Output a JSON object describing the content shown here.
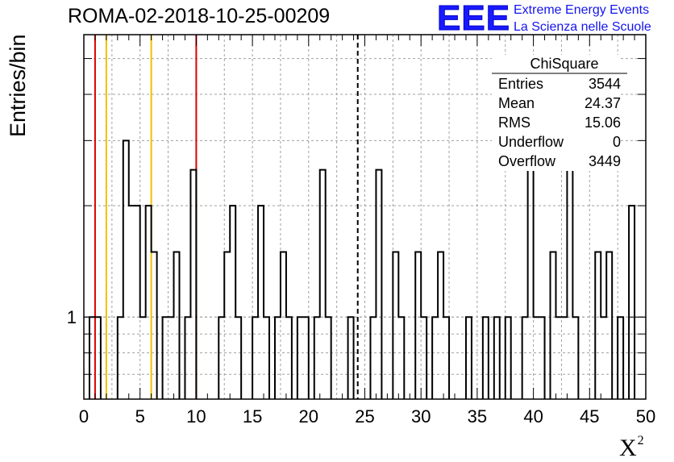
{
  "page_title": "ROMA-02-2018-10-25-00209",
  "logo": {
    "mark": "EEE",
    "line1": "Extreme Energy Events",
    "line2": "La Scienza nelle Scuole",
    "color": "#1a1aff"
  },
  "chart_data": {
    "type": "histogram",
    "title": "ROMA-02-2018-10-25-00209",
    "xlabel": "X",
    "xlabel_superscript": "2",
    "ylabel": "Entries/bin",
    "xlim": [
      0,
      50
    ],
    "ylim": [
      0.6,
      5.8
    ],
    "yscale": "log",
    "grid": true,
    "bin_width": 0.5,
    "x_ticks": [
      0,
      5,
      10,
      15,
      20,
      25,
      30,
      35,
      40,
      45,
      50
    ],
    "y_tick_labels": [
      {
        "value": 1,
        "label": "1"
      }
    ],
    "bins": [
      {
        "x": 0.5,
        "y": 1
      },
      {
        "x": 1.0,
        "y": 1
      },
      {
        "x": 3.0,
        "y": 1
      },
      {
        "x": 3.5,
        "y": 3
      },
      {
        "x": 4.0,
        "y": 2
      },
      {
        "x": 4.5,
        "y": 2
      },
      {
        "x": 5.0,
        "y": 1
      },
      {
        "x": 5.5,
        "y": 2
      },
      {
        "x": 6.0,
        "y": 1.5
      },
      {
        "x": 7.0,
        "y": 1
      },
      {
        "x": 7.5,
        "y": 1
      },
      {
        "x": 8.0,
        "y": 1.5
      },
      {
        "x": 9.0,
        "y": 1
      },
      {
        "x": 9.5,
        "y": 2.5
      },
      {
        "x": 12.0,
        "y": 1
      },
      {
        "x": 12.5,
        "y": 1.5
      },
      {
        "x": 13.0,
        "y": 2
      },
      {
        "x": 13.5,
        "y": 1
      },
      {
        "x": 15.0,
        "y": 1
      },
      {
        "x": 15.5,
        "y": 2
      },
      {
        "x": 16.0,
        "y": 1
      },
      {
        "x": 17.0,
        "y": 1
      },
      {
        "x": 17.5,
        "y": 1.5
      },
      {
        "x": 18.0,
        "y": 1
      },
      {
        "x": 19.0,
        "y": 1
      },
      {
        "x": 19.5,
        "y": 1
      },
      {
        "x": 20.5,
        "y": 1
      },
      {
        "x": 21.0,
        "y": 2.5
      },
      {
        "x": 21.5,
        "y": 1
      },
      {
        "x": 23.5,
        "y": 1
      },
      {
        "x": 25.5,
        "y": 1
      },
      {
        "x": 26.0,
        "y": 2.5
      },
      {
        "x": 27.5,
        "y": 1.5
      },
      {
        "x": 28.0,
        "y": 1
      },
      {
        "x": 29.5,
        "y": 1.5
      },
      {
        "x": 30.0,
        "y": 1
      },
      {
        "x": 31.0,
        "y": 1
      },
      {
        "x": 31.5,
        "y": 1.5
      },
      {
        "x": 32.0,
        "y": 1
      },
      {
        "x": 34.0,
        "y": 1
      },
      {
        "x": 35.5,
        "y": 1
      },
      {
        "x": 36.5,
        "y": 1
      },
      {
        "x": 37.5,
        "y": 1
      },
      {
        "x": 39.0,
        "y": 1
      },
      {
        "x": 39.5,
        "y": 2.5
      },
      {
        "x": 40.0,
        "y": 1
      },
      {
        "x": 40.5,
        "y": 1
      },
      {
        "x": 41.5,
        "y": 1.5
      },
      {
        "x": 42.0,
        "y": 1
      },
      {
        "x": 42.5,
        "y": 1
      },
      {
        "x": 43.0,
        "y": 2.5
      },
      {
        "x": 43.5,
        "y": 1
      },
      {
        "x": 45.5,
        "y": 1.5
      },
      {
        "x": 46.0,
        "y": 1
      },
      {
        "x": 46.5,
        "y": 1.5
      },
      {
        "x": 47.5,
        "y": 1
      },
      {
        "x": 48.5,
        "y": 2
      }
    ],
    "vertical_lines": [
      {
        "x": 1.0,
        "color": "#e00000",
        "style": "solid",
        "y_top": 5.8
      },
      {
        "x": 2.0,
        "color": "#f0c000",
        "style": "solid",
        "y_top": 5.8
      },
      {
        "x": 6.0,
        "color": "#f0c000",
        "style": "solid",
        "y_top": 5.8
      },
      {
        "x": 10.0,
        "color": "#e00000",
        "style": "solid",
        "y_top": 5.8
      },
      {
        "x": 24.37,
        "color": "#000000",
        "style": "dashed",
        "y_top": 5.8
      }
    ],
    "stats_box": {
      "title": "ChiSquare",
      "placement": "top-right",
      "rows": [
        {
          "label": "Entries",
          "value": "3544"
        },
        {
          "label": "Mean",
          "value": "24.37"
        },
        {
          "label": "RMS",
          "value": "15.06"
        },
        {
          "label": "Underflow",
          "value": "0"
        },
        {
          "label": "Overflow",
          "value": "3449"
        }
      ]
    }
  }
}
